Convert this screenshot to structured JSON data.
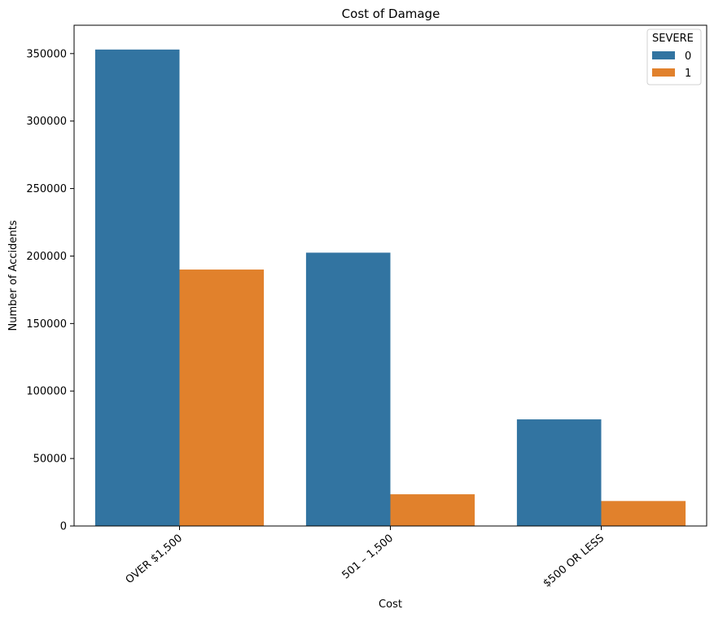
{
  "chart_data": {
    "type": "bar",
    "title": "Cost of Damage",
    "xlabel": "Cost",
    "ylabel": "Number of Accidents",
    "categories": [
      "OVER $1,500",
      "501 – 1,500",
      "$500 OR LESS"
    ],
    "series": [
      {
        "name": "0",
        "color": "#3274a1",
        "values": [
          353000,
          202500,
          79000
        ]
      },
      {
        "name": "1",
        "color": "#e1812c",
        "values": [
          190000,
          23500,
          18500
        ]
      }
    ],
    "ylim": [
      0,
      371000
    ],
    "yticks": [
      0,
      50000,
      100000,
      150000,
      200000,
      250000,
      300000,
      350000
    ],
    "ytick_labels": [
      "0",
      "50000",
      "100000",
      "150000",
      "200000",
      "250000",
      "300000",
      "350000"
    ],
    "legend": {
      "title": "SEVERE",
      "placement": "top-right"
    },
    "grid": false
  }
}
